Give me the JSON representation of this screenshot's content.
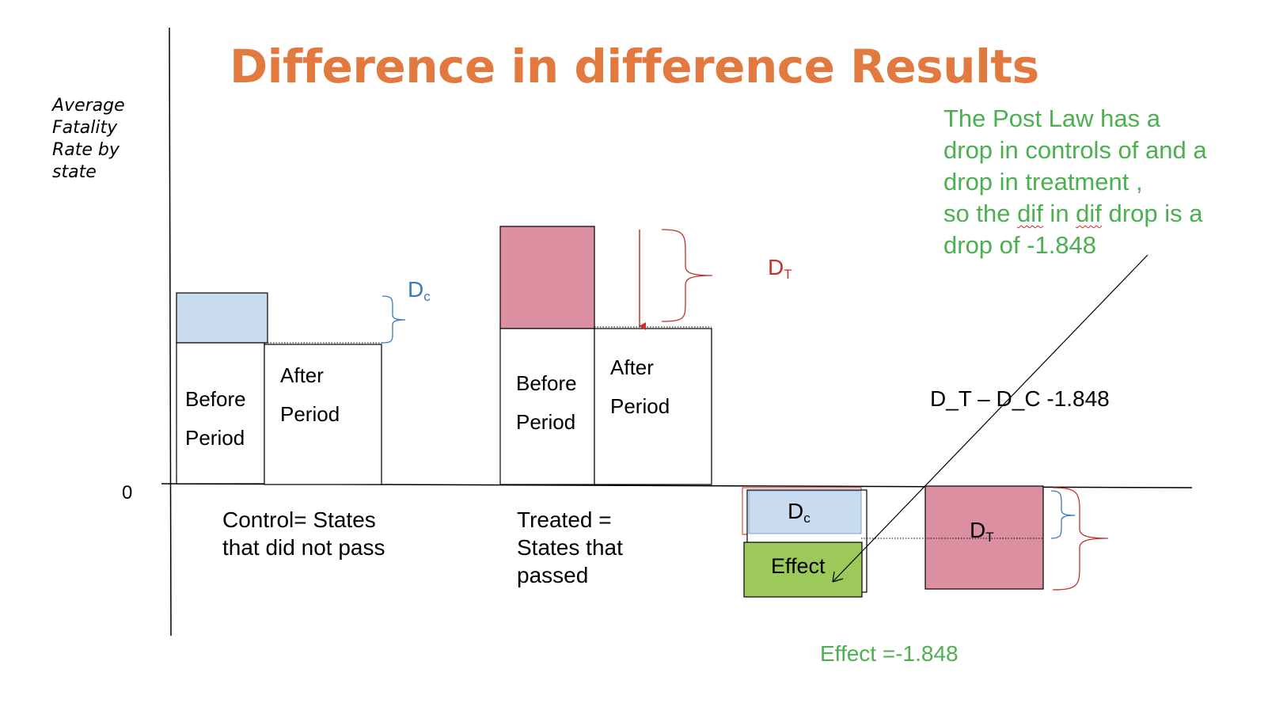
{
  "title": "Difference in difference Results",
  "y_axis": {
    "label_lines": [
      "Average",
      "Fatality",
      "Rate by",
      "state"
    ],
    "zero_label": "0"
  },
  "control": {
    "before_box": [
      "Before",
      "Period"
    ],
    "after_box": [
      "After",
      "Period"
    ],
    "caption_lines": [
      "Control= States",
      "that did not pass"
    ],
    "diff_label": "D",
    "diff_sub": "c"
  },
  "treated": {
    "before_box": [
      "Before",
      "Period"
    ],
    "after_box": [
      "After",
      "Period"
    ],
    "caption_lines": [
      "Treated =",
      "States that",
      "passed"
    ],
    "diff_label": "D",
    "diff_sub": "T"
  },
  "result": {
    "dc_label": "D",
    "dc_sub": "c",
    "effect_box_label": "Effect",
    "dt_label": "D",
    "dt_sub": "T",
    "difference_text": "D_T – D_C  -1.848",
    "effect_value_text": "Effect =-1.848"
  },
  "note": {
    "line1": "The Post Law has a",
    "line2": "drop in controls of and a",
    "line3": "drop in treatment ,",
    "line4_pre": "so the ",
    "line4_w1": "dif",
    "line4_mid": " in ",
    "line4_w2": "dif",
    "line4_post": " drop is a",
    "line5": "drop of -1.848"
  },
  "colors": {
    "title": "#E27A40",
    "control_blue_fill": "#C9DBEF",
    "treated_pink_fill": "#DB8FA1",
    "effect_green_fill": "#9CC95A",
    "note_green": "#4CAF50",
    "dc_blue": "#3B78C0",
    "dt_red": "#C0332C"
  }
}
